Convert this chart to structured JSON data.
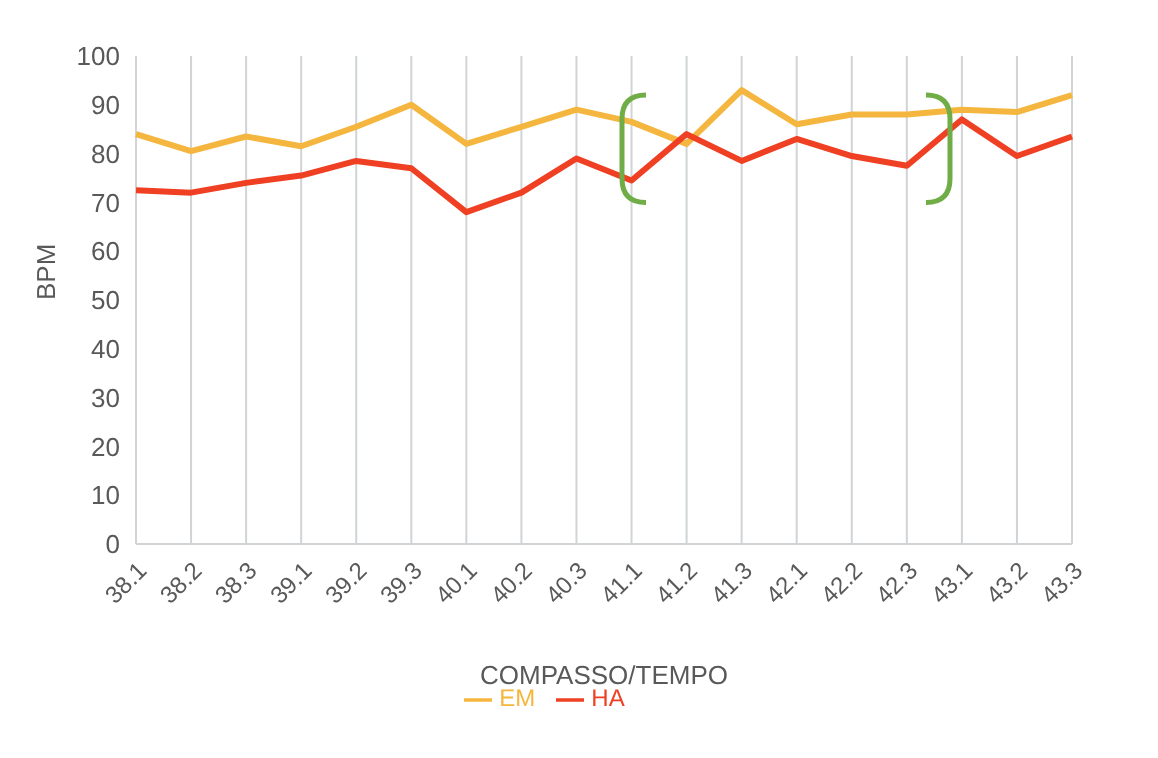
{
  "chart_data": {
    "type": "line",
    "xlabel": "COMPASSO/TEMPO",
    "ylabel": "BPM",
    "categories": [
      "38.1",
      "38.2",
      "38.3",
      "39.1",
      "39.2",
      "39.3",
      "40.1",
      "40.2",
      "40.3",
      "41.1",
      "41.2",
      "41.3",
      "42.1",
      "42.2",
      "42.3",
      "43.1",
      "43.2",
      "43.3"
    ],
    "series": [
      {
        "name": "EM",
        "color": "#f4b63e",
        "values": [
          84,
          80.5,
          83.5,
          81.5,
          85.5,
          90,
          82,
          85.5,
          89,
          86.5,
          82,
          93,
          86,
          88,
          88,
          89,
          88.5,
          92
        ]
      },
      {
        "name": "HA",
        "color": "#ef4023",
        "values": [
          72.5,
          72,
          74,
          75.5,
          78.5,
          77,
          68,
          72,
          79,
          74.5,
          84,
          78.5,
          83,
          79.5,
          77.5,
          87,
          79.5,
          83.5
        ]
      }
    ],
    "ylim": [
      0,
      100
    ],
    "yticks": [
      0,
      10,
      20,
      30,
      40,
      50,
      60,
      70,
      80,
      90,
      100
    ],
    "grid": "x",
    "legend": "bottom",
    "marker": "none",
    "line_style": "solid"
  }
}
